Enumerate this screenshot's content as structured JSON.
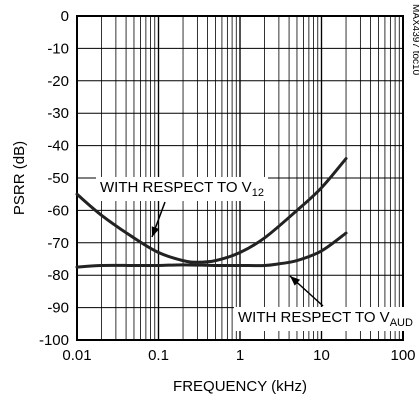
{
  "chart_data": {
    "type": "line",
    "title": "",
    "xlabel": "FREQUENCY (kHz)",
    "ylabel": "PSRR (dB)",
    "xscale": "log",
    "xlim": [
      0.01,
      100
    ],
    "ylim": [
      -100,
      0
    ],
    "grid": true,
    "x_ticks": [
      "0.01",
      "0.1",
      "1",
      "10",
      "100"
    ],
    "y_ticks": [
      "0",
      "-10",
      "-20",
      "-30",
      "-40",
      "-50",
      "-60",
      "-70",
      "-80",
      "-90",
      "-100"
    ],
    "code": "MAX4397 toc10",
    "series": [
      {
        "label_main": "WITH RESPECT TO V",
        "label_sub": "12",
        "x": [
          0.01,
          0.02,
          0.05,
          0.1,
          0.2,
          0.3,
          0.5,
          1,
          2,
          5,
          10,
          20
        ],
        "y": [
          -55,
          -61.5,
          -68.5,
          -73,
          -75.5,
          -76,
          -75.5,
          -73,
          -68.5,
          -60,
          -53,
          -44
        ]
      },
      {
        "label_main": "WITH RESPECT TO V",
        "label_sub": "AUD",
        "x": [
          0.01,
          0.02,
          0.05,
          0.1,
          0.2,
          0.5,
          1,
          2,
          3,
          5,
          10,
          20
        ],
        "y": [
          -77.5,
          -77,
          -77,
          -77,
          -76.8,
          -77,
          -77,
          -77,
          -76.5,
          -75.5,
          -72.5,
          -67
        ]
      }
    ]
  }
}
